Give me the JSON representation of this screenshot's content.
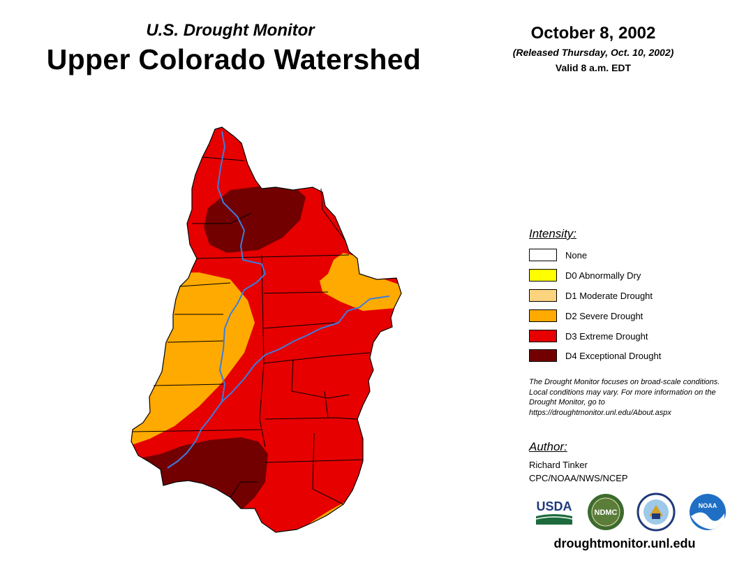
{
  "header": {
    "subtitle": "U.S. Drought Monitor",
    "title": "Upper Colorado Watershed",
    "date": "October 8, 2002",
    "released": "(Released Thursday, Oct. 10, 2002)",
    "valid": "Valid 8 a.m. EDT"
  },
  "legend": {
    "heading": "Intensity:",
    "items": [
      {
        "label": "None",
        "color": "#ffffff"
      },
      {
        "label": "D0 Abnormally Dry",
        "color": "#ffff00"
      },
      {
        "label": "D1 Moderate Drought",
        "color": "#fcd37f"
      },
      {
        "label": "D2 Severe Drought",
        "color": "#ffaa00"
      },
      {
        "label": "D3 Extreme Drought",
        "color": "#e60000"
      },
      {
        "label": "D4 Exceptional Drought",
        "color": "#730000"
      }
    ]
  },
  "disclaimer": "The Drought Monitor focuses on broad-scale conditions. Local conditions may vary. For more information on the Drought Monitor, go to https://droughtmonitor.unl.edu/About.aspx",
  "author": {
    "heading": "Author:",
    "name": "Richard Tinker",
    "org": "CPC/NOAA/NWS/NCEP"
  },
  "logos": {
    "usda": "USDA",
    "ndmc": "NDMC",
    "noaa": "NOAA"
  },
  "website": "droughtmonitor.unl.edu",
  "colors": {
    "river": "#3b7ddd",
    "boundary": "#000000"
  }
}
